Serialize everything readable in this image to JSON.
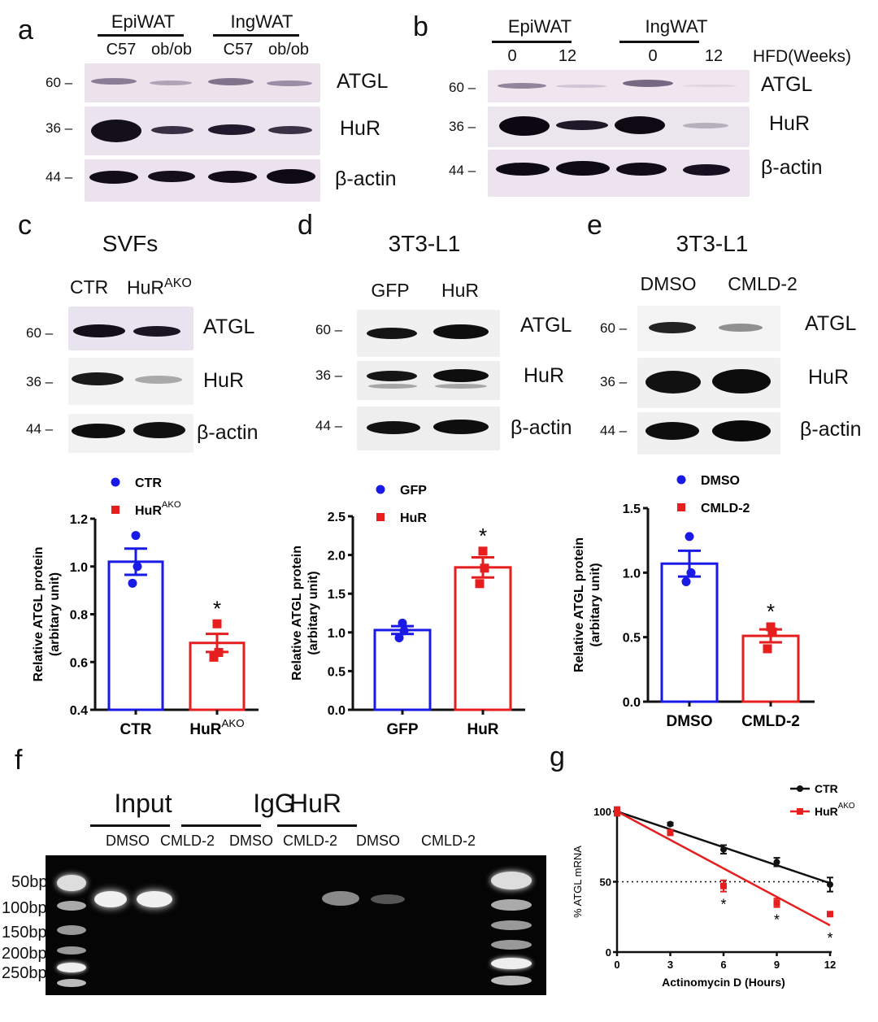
{
  "panels": {
    "a": {
      "label": "a",
      "groups": [
        "EpiWAT",
        "IngWAT"
      ],
      "lanes": [
        "C57",
        "ob/ob",
        "C57",
        "ob/ob"
      ],
      "rows": [
        {
          "mw": "60",
          "protein": "ATGL"
        },
        {
          "mw": "36",
          "protein": "HuR"
        },
        {
          "mw": "44",
          "protein": "β-actin"
        }
      ]
    },
    "b": {
      "label": "b",
      "groups": [
        "EpiWAT",
        "IngWAT"
      ],
      "lanes": [
        "0",
        "12",
        "0",
        "12"
      ],
      "lane_axis_label": "HFD(Weeks)",
      "rows": [
        {
          "mw": "60",
          "protein": "ATGL"
        },
        {
          "mw": "36",
          "protein": "HuR"
        },
        {
          "mw": "44",
          "protein": "β-actin"
        }
      ]
    },
    "c": {
      "label": "c",
      "title": "SVFs",
      "lanes": [
        "CTR",
        "HuR"
      ],
      "lane2_sup": "AKO",
      "rows": [
        {
          "mw": "60",
          "protein": "ATGL"
        },
        {
          "mw": "36",
          "protein": "HuR"
        },
        {
          "mw": "44",
          "protein": "β-actin"
        }
      ]
    },
    "d": {
      "label": "d",
      "title": "3T3-L1",
      "lanes": [
        "GFP",
        "HuR"
      ],
      "rows": [
        {
          "mw": "60",
          "protein": "ATGL"
        },
        {
          "mw": "36",
          "protein": "HuR"
        },
        {
          "mw": "44",
          "protein": "β-actin"
        }
      ]
    },
    "e": {
      "label": "e",
      "title": "3T3-L1",
      "lanes": [
        "DMSO",
        "CMLD-2"
      ],
      "rows": [
        {
          "mw": "60",
          "protein": "ATGL"
        },
        {
          "mw": "36",
          "protein": "HuR"
        },
        {
          "mw": "44",
          "protein": "β-actin"
        }
      ]
    },
    "f": {
      "label": "f",
      "groups": [
        "Input",
        "IgG",
        "HuR"
      ],
      "lanes": [
        "DMSO",
        "CMLD-2",
        "DMSO",
        "CMLD-2",
        "DMSO",
        "CMLD-2"
      ],
      "ladder": [
        "50bp",
        "100bp",
        "150bp",
        "200bp",
        "250bp"
      ]
    },
    "g": {
      "label": "g"
    }
  },
  "chart_data": [
    {
      "id": "c-bar",
      "type": "bar",
      "categories": [
        "CTR",
        "HuR^AKO"
      ],
      "series": [
        {
          "name": "CTR",
          "color": "#1a1ae6",
          "mean": 1.02,
          "sem": 0.055,
          "points": [
            1.13,
            1.0,
            0.93
          ]
        },
        {
          "name": "HuR^AKO",
          "color": "#e61e1e",
          "mean": 0.68,
          "sem": 0.038,
          "points": [
            0.76,
            0.64,
            0.62
          ]
        }
      ],
      "ylabel": "Relative ATGL protein (arbitary unit)",
      "ylim": [
        0.4,
        1.2
      ],
      "yticks": [
        "0.4",
        "0.6",
        "0.8",
        "1.0",
        "1.2"
      ],
      "legend": [
        "CTR",
        "HuR^AKO"
      ],
      "annotations": [
        {
          "category": "HuR^AKO",
          "text": "*"
        }
      ]
    },
    {
      "id": "d-bar",
      "type": "bar",
      "categories": [
        "GFP",
        "HuR"
      ],
      "series": [
        {
          "name": "GFP",
          "color": "#1a1ae6",
          "mean": 1.03,
          "sem": 0.05,
          "points": [
            1.12,
            1.02,
            0.93
          ]
        },
        {
          "name": "HuR",
          "color": "#e61e1e",
          "mean": 1.84,
          "sem": 0.13,
          "points": [
            2.05,
            1.83,
            1.63
          ]
        }
      ],
      "ylabel": "Relative ATGL protein (arbitary unit)",
      "ylim": [
        0.0,
        2.5
      ],
      "yticks": [
        "0.0",
        "0.5",
        "1.0",
        "1.5",
        "2.0",
        "2.5"
      ],
      "legend": [
        "GFP",
        "HuR"
      ],
      "annotations": [
        {
          "category": "HuR",
          "text": "*"
        }
      ]
    },
    {
      "id": "e-bar",
      "type": "bar",
      "categories": [
        "DMSO",
        "CMLD-2"
      ],
      "series": [
        {
          "name": "DMSO",
          "color": "#1a1ae6",
          "mean": 1.07,
          "sem": 0.1,
          "points": [
            1.28,
            1.0,
            0.93
          ]
        },
        {
          "name": "CMLD-2",
          "color": "#e61e1e",
          "mean": 0.51,
          "sem": 0.05,
          "points": [
            0.58,
            0.54,
            0.41
          ]
        }
      ],
      "ylabel": "Relative ATGL protein (arbitary unit)",
      "ylim": [
        0.0,
        1.5
      ],
      "yticks": [
        "0.0",
        "0.5",
        "1.0",
        "1.5"
      ],
      "legend": [
        "DMSO",
        "CMLD-2"
      ],
      "annotations": [
        {
          "category": "CMLD-2",
          "text": "*"
        }
      ]
    },
    {
      "id": "g-line",
      "type": "line",
      "x": [
        0,
        3,
        6,
        9,
        12
      ],
      "series": [
        {
          "name": "CTR",
          "color": "#111111",
          "values": [
            100,
            91,
            73,
            64,
            48
          ],
          "err": [
            3,
            1,
            3,
            3,
            5
          ],
          "fit": [
            [
              0,
              100
            ],
            [
              12,
              49
            ]
          ]
        },
        {
          "name": "HuR^AKO",
          "color": "#e61e1e",
          "values": [
            100,
            85,
            47,
            35,
            27
          ],
          "err": [
            3,
            2,
            4,
            3,
            1
          ],
          "fit": [
            [
              0,
              100
            ],
            [
              12,
              19
            ]
          ]
        }
      ],
      "xlabel": "Actinomycin D (Hours)",
      "ylabel": "% ATGL mRNA",
      "xticks": [
        "0",
        "3",
        "6",
        "9",
        "12"
      ],
      "yticks": [
        "0",
        "50",
        "100"
      ],
      "ylim": [
        0,
        100
      ],
      "xlim": [
        0,
        12
      ],
      "reference_line": {
        "y": 50,
        "style": "dotted"
      },
      "annotations": [
        {
          "x": 6,
          "text": "*"
        },
        {
          "x": 9,
          "text": "*"
        },
        {
          "x": 12,
          "text": "*"
        }
      ],
      "legend": [
        "CTR",
        "HuR^AKO"
      ]
    }
  ]
}
